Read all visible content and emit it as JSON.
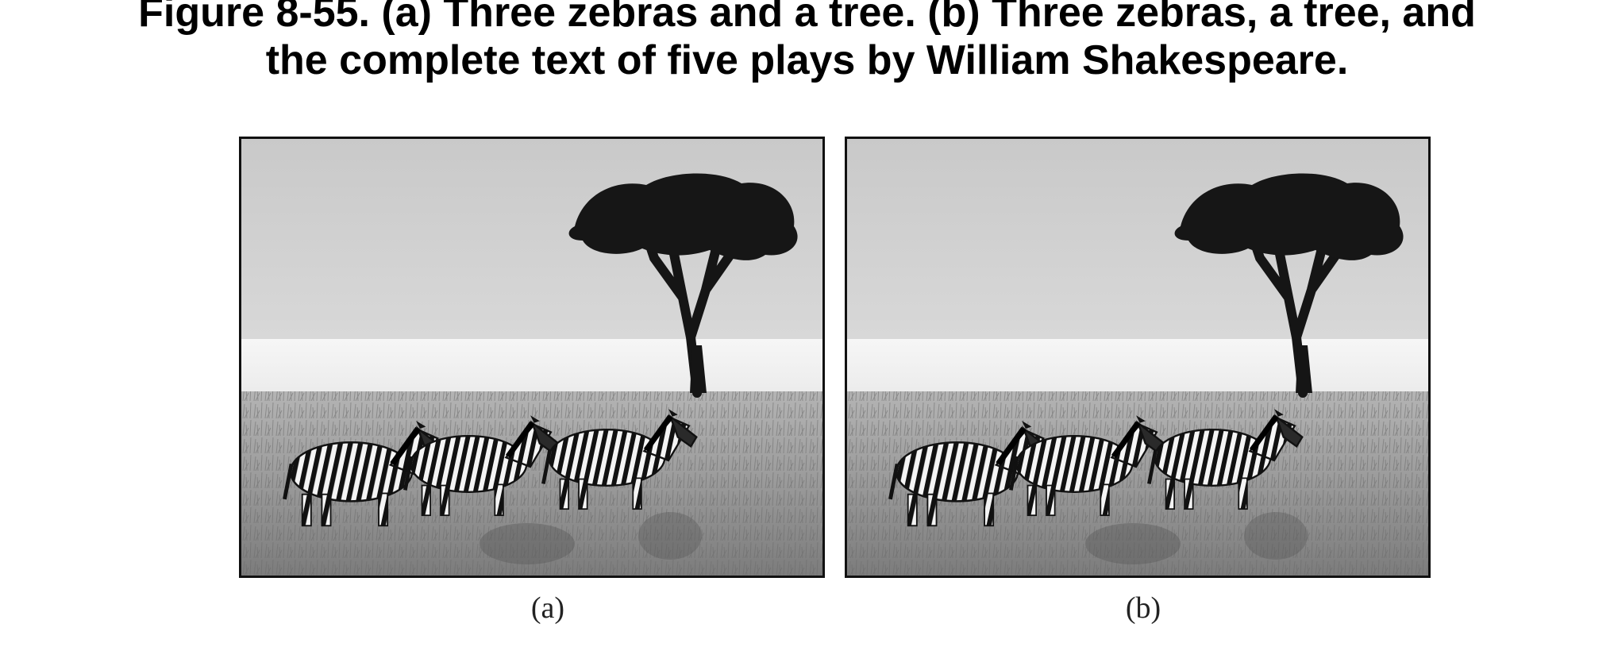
{
  "figure": {
    "caption_line1": "Figure 8-55. (a) Three zebras and a tree. (b) Three zebras, a tree, and",
    "caption_line2": "the complete text of five plays by William Shakespeare.",
    "panels": [
      {
        "label": "(a)"
      },
      {
        "label": "(b)"
      }
    ]
  }
}
